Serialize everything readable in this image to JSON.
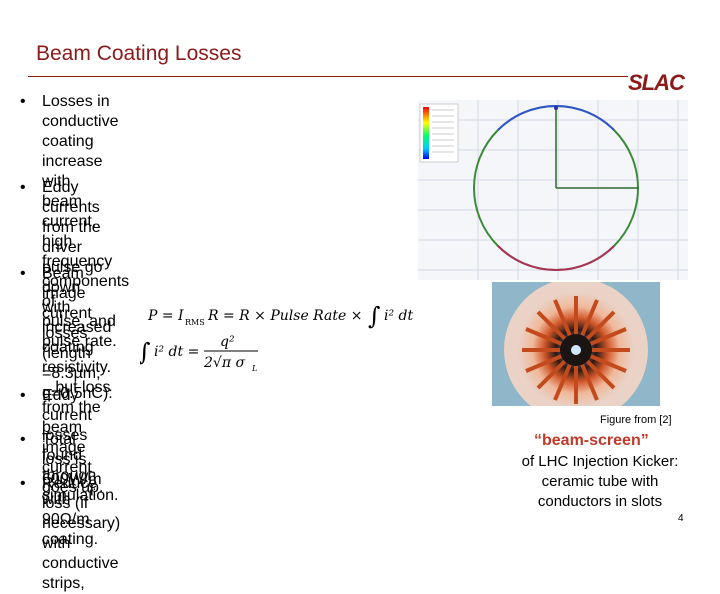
{
  "title": "Beam Coating Losses",
  "logo": "SLAC",
  "bullets": [
    {
      "marker": "•",
      "text": "Losses in conductive coating increase with\nbeam current, high frequency components of\npulse, and pulse rate."
    },
    {
      "marker": "•",
      "text": "Eddy currents from the driver pulse go down\nwith increased coating resistivity. . .but loss\nfrom the beam image current goes up."
    },
    {
      "marker": "•",
      "text": "Beam image current losses (length =8.3µm,\nq=0.5nC):"
    },
    {
      "marker": "•",
      "text": "Eddy current losses found through simulation."
    },
    {
      "marker": "•",
      "text": "Total loss is 600W/m with 90Ω/m coating."
    },
    {
      "marker": "•",
      "text": "Reduce loss (if necessary) with conductive strips,"
    }
  ],
  "formula": {
    "line1_lhs": "P = I",
    "line1_sub": "RMS",
    "line1_rest": "R = R × Pulse Rate ×",
    "integral": "∫",
    "integrand": "i² dt",
    "line2_lhs": "i² dt =",
    "numerator": "q²",
    "denominator": "2√π σ",
    "den_sub": "L"
  },
  "sim_image": {
    "icon": "field-simulation-plot"
  },
  "photo": {
    "icon": "ceramic-tube-photo"
  },
  "figure_caption": "Figure from [2]",
  "beam_screen_label": "“beam-screen”",
  "beam_screen_desc": "of LHC Injection Kicker:\nceramic tube with\nconductors in slots",
  "page_number": "4"
}
